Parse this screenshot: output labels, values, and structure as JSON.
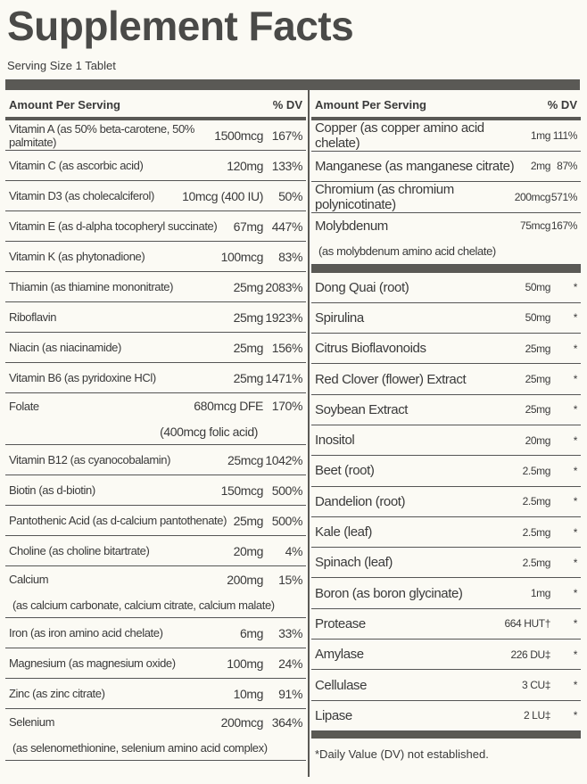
{
  "header": {
    "title": "Supplement Facts",
    "serving": "Serving Size 1 Tablet"
  },
  "left": {
    "head_amount": "Amount Per Serving",
    "head_dv": "% DV",
    "rows": [
      {
        "name": "Vitamin A (as 50% beta-carotene, 50% palmitate)",
        "amount": "1500mcg",
        "dv": "167%"
      },
      {
        "name": "Vitamin C (as ascorbic acid)",
        "amount": "120mg",
        "dv": "133%"
      },
      {
        "name": "Vitamin D3 (as cholecalciferol)",
        "amount": "10mcg (400 IU)",
        "dv": "50%"
      },
      {
        "name": "Vitamin E (as d-alpha tocopheryl succinate)",
        "amount": "67mg",
        "dv": "447%"
      },
      {
        "name": "Vitamin K (as phytonadione)",
        "amount": "100mcg",
        "dv": "83%"
      },
      {
        "name": "Thiamin (as thiamine mononitrate)",
        "amount": "25mg",
        "dv": "2083%"
      },
      {
        "name": "Riboflavin",
        "amount": "25mg",
        "dv": "1923%"
      },
      {
        "name": "Niacin (as niacinamide)",
        "amount": "25mg",
        "dv": "156%"
      },
      {
        "name": "Vitamin B6 (as pyridoxine HCl)",
        "amount": "25mg",
        "dv": "1471%"
      },
      {
        "name": "Folate",
        "amount": "680mcg DFE",
        "dv": "170%",
        "amount_note": "(400mcg folic acid)"
      },
      {
        "name": "Vitamin B12 (as cyanocobalamin)",
        "amount": "25mcg",
        "dv": "1042%"
      },
      {
        "name": "Biotin (as d-biotin)",
        "amount": "150mcg",
        "dv": "500%"
      },
      {
        "name": "Pantothenic Acid (as d-calcium pantothenate)",
        "amount": "25mg",
        "dv": "500%"
      },
      {
        "name": "Choline (as choline bitartrate)",
        "amount": "20mg",
        "dv": "4%"
      },
      {
        "name": "Calcium",
        "amount": "200mg",
        "dv": "15%",
        "note": "(as calcium carbonate, calcium citrate, calcium malate)"
      },
      {
        "name": "Iron (as iron amino acid chelate)",
        "amount": "6mg",
        "dv": "33%"
      },
      {
        "name": "Magnesium (as magnesium oxide)",
        "amount": "100mg",
        "dv": "24%"
      },
      {
        "name": "Zinc (as zinc citrate)",
        "amount": "10mg",
        "dv": "91%"
      },
      {
        "name": "Selenium",
        "amount": "200mcg",
        "dv": "364%",
        "note": "(as selenomethionine, selenium amino acid complex)"
      }
    ]
  },
  "right": {
    "head_amount": "Amount Per Serving",
    "head_dv": "% DV",
    "rows": [
      {
        "name": "Copper (as copper amino acid chelate)",
        "amount": "1mg",
        "dv": "111%"
      },
      {
        "name": "Manganese (as manganese citrate)",
        "amount": "2mg",
        "dv": "87%"
      },
      {
        "name": "Chromium (as chromium polynicotinate)",
        "amount": "200mcg",
        "dv": "571%"
      },
      {
        "name": "Molybdenum",
        "amount": "75mcg",
        "dv": "167%",
        "note": "(as molybdenum amino acid chelate)"
      }
    ],
    "rows2": [
      {
        "name": "Dong Quai (root)",
        "amount": "50mg",
        "dv": "*"
      },
      {
        "name": "Spirulina",
        "amount": "50mg",
        "dv": "*"
      },
      {
        "name": "Citrus Bioflavonoids",
        "amount": "25mg",
        "dv": "*"
      },
      {
        "name": "Red Clover (flower) Extract",
        "amount": "25mg",
        "dv": "*"
      },
      {
        "name": "Soybean Extract",
        "amount": "25mg",
        "dv": "*"
      },
      {
        "name": "Inositol",
        "amount": "20mg",
        "dv": "*"
      },
      {
        "name": "Beet (root)",
        "amount": "2.5mg",
        "dv": "*"
      },
      {
        "name": "Dandelion (root)",
        "amount": "2.5mg",
        "dv": "*"
      },
      {
        "name": "Kale (leaf)",
        "amount": "2.5mg",
        "dv": "*"
      },
      {
        "name": "Spinach (leaf)",
        "amount": "2.5mg",
        "dv": "*"
      },
      {
        "name": "Boron (as boron glycinate)",
        "amount": "1mg",
        "dv": "*"
      },
      {
        "name": "Protease",
        "amount": "664 HUT†",
        "dv": "*"
      },
      {
        "name": "Amylase",
        "amount": "226 DU‡",
        "dv": "*"
      },
      {
        "name": "Cellulase",
        "amount": "3 CU‡",
        "dv": "*"
      },
      {
        "name": "Lipase",
        "amount": "2 LU‡",
        "dv": "*"
      }
    ],
    "footnote": "*Daily Value (DV) not established."
  }
}
